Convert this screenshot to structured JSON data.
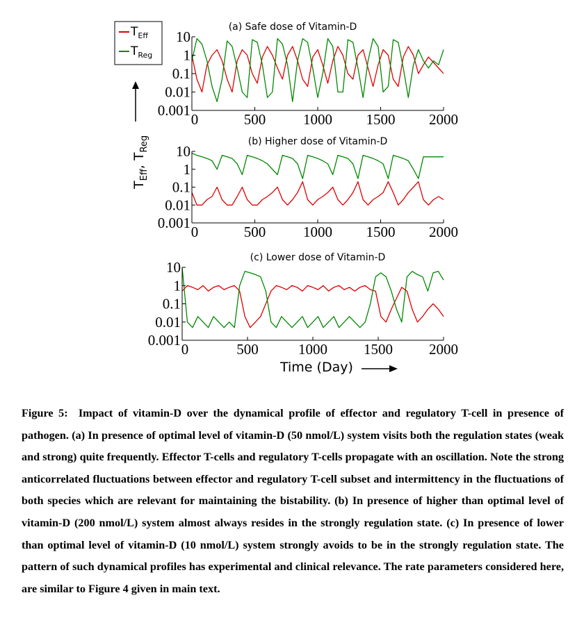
{
  "legend": {
    "entries": [
      {
        "base": "T",
        "sub": "Eff",
        "color": "#e00000"
      },
      {
        "base": "T",
        "sub": "Reg",
        "color": "#008800"
      }
    ]
  },
  "y_axis_label": {
    "part1": "T",
    "sub1": "Eff",
    "sep": ", T",
    "sub2": "Reg"
  },
  "x_axis_label": "Time (Day)",
  "chart_data": [
    {
      "type": "line",
      "title": "(a) Safe dose of Vitamin-D",
      "scale_y": "log",
      "xlim": [
        0,
        2000
      ],
      "ylim": [
        0.001,
        10
      ],
      "xticks": [
        "0",
        "500",
        "1000",
        "1500",
        "2000"
      ],
      "yticks": [
        "10",
        "1",
        "0.1",
        "0.01",
        "0.001"
      ],
      "series": [
        {
          "name": "TEff",
          "color": "#e00000",
          "x": [
            0,
            40,
            80,
            120,
            160,
            200,
            240,
            280,
            320,
            360,
            400,
            440,
            480,
            520,
            560,
            600,
            640,
            680,
            720,
            760,
            800,
            840,
            880,
            920,
            960,
            1000,
            1040,
            1080,
            1120,
            1160,
            1200,
            1240,
            1280,
            1320,
            1360,
            1400,
            1440,
            1480,
            1520,
            1560,
            1600,
            1640,
            1680,
            1720,
            1760,
            1800,
            1840,
            1880,
            1920,
            1960,
            2000
          ],
          "y": [
            1,
            0.05,
            0.01,
            0.3,
            1,
            2,
            0.5,
            0.05,
            0.01,
            0.5,
            2,
            1,
            0.1,
            0.03,
            0.8,
            3,
            1,
            0.2,
            0.05,
            1,
            3,
            0.5,
            0.05,
            0.02,
            0.8,
            2,
            0.3,
            0.03,
            0.5,
            3,
            1,
            0.1,
            0.05,
            1,
            2,
            0.2,
            0.02,
            0.3,
            2,
            1,
            0.05,
            0.02,
            0.8,
            3,
            1,
            0.1,
            0.3,
            0.8,
            0.4,
            0.2,
            0.1
          ]
        },
        {
          "name": "TReg",
          "color": "#008800",
          "x": [
            0,
            40,
            80,
            120,
            160,
            200,
            240,
            280,
            320,
            360,
            400,
            440,
            480,
            520,
            560,
            600,
            640,
            680,
            720,
            760,
            800,
            840,
            880,
            920,
            960,
            1000,
            1040,
            1080,
            1120,
            1160,
            1200,
            1240,
            1280,
            1320,
            1360,
            1400,
            1440,
            1480,
            1520,
            1560,
            1600,
            1640,
            1680,
            1720,
            1760,
            1800,
            1840,
            1880,
            1920,
            1960,
            2000
          ],
          "y": [
            0.5,
            8,
            4,
            0.5,
            0.02,
            0.003,
            0.05,
            6,
            3,
            0.2,
            0.01,
            0.005,
            7,
            5,
            0.3,
            0.005,
            0.01,
            8,
            4,
            0.3,
            0.003,
            0.5,
            8,
            5,
            0.2,
            0.005,
            0.1,
            8,
            3,
            0.01,
            0.01,
            7,
            5,
            0.2,
            0.005,
            0.5,
            8,
            3,
            0.01,
            0.02,
            7,
            5,
            0.2,
            0.005,
            0.3,
            2,
            0.5,
            0.2,
            0.5,
            0.3,
            2
          ]
        }
      ]
    },
    {
      "type": "line",
      "title": "(b) Higher dose of Vitamin-D",
      "scale_y": "log",
      "xlim": [
        0,
        2000
      ],
      "ylim": [
        0.001,
        10
      ],
      "xticks": [
        "0",
        "500",
        "1000",
        "1500",
        "2000"
      ],
      "yticks": [
        "10",
        "1",
        "0.1",
        "0.01",
        "0.001"
      ],
      "series": [
        {
          "name": "TEff",
          "color": "#e00000",
          "x": [
            0,
            40,
            80,
            120,
            160,
            200,
            240,
            280,
            320,
            360,
            400,
            440,
            480,
            520,
            560,
            600,
            640,
            680,
            720,
            760,
            800,
            840,
            880,
            920,
            960,
            1000,
            1040,
            1080,
            1120,
            1160,
            1200,
            1240,
            1280,
            1320,
            1360,
            1400,
            1440,
            1480,
            1520,
            1560,
            1600,
            1640,
            1680,
            1720,
            1760,
            1800,
            1840,
            1880,
            1920,
            1960,
            2000
          ],
          "y": [
            0.05,
            0.01,
            0.01,
            0.02,
            0.03,
            0.1,
            0.02,
            0.01,
            0.01,
            0.03,
            0.1,
            0.02,
            0.01,
            0.01,
            0.02,
            0.03,
            0.05,
            0.1,
            0.02,
            0.01,
            0.02,
            0.05,
            0.2,
            0.02,
            0.01,
            0.02,
            0.03,
            0.05,
            0.1,
            0.02,
            0.01,
            0.02,
            0.05,
            0.2,
            0.02,
            0.01,
            0.02,
            0.03,
            0.05,
            0.2,
            0.05,
            0.01,
            0.02,
            0.05,
            0.1,
            0.2,
            0.02,
            0.01,
            0.02,
            0.03,
            0.02
          ]
        },
        {
          "name": "TReg",
          "color": "#008800",
          "x": [
            0,
            40,
            80,
            120,
            160,
            200,
            240,
            280,
            320,
            360,
            400,
            440,
            480,
            520,
            560,
            600,
            640,
            680,
            720,
            760,
            800,
            840,
            880,
            920,
            960,
            1000,
            1040,
            1080,
            1120,
            1160,
            1200,
            1240,
            1280,
            1320,
            1360,
            1400,
            1440,
            1480,
            1520,
            1560,
            1600,
            1640,
            1680,
            1720,
            1760,
            1800,
            1840,
            1880,
            1920,
            1960,
            2000
          ],
          "y": [
            8,
            6,
            5,
            4,
            3,
            1,
            6,
            5,
            4,
            2,
            0.5,
            6,
            5,
            4,
            3,
            2,
            1,
            0.5,
            6,
            5,
            4,
            2,
            0.3,
            6,
            5,
            4,
            3,
            2,
            0.5,
            6,
            5,
            4,
            2,
            0.3,
            6,
            5,
            4,
            3,
            2,
            0.3,
            6,
            5,
            4,
            3,
            1,
            0.3,
            5,
            5,
            5,
            5,
            5
          ]
        }
      ]
    },
    {
      "type": "line",
      "title": "(c) Lower dose of Vitamin-D",
      "scale_y": "log",
      "xlim": [
        0,
        2000
      ],
      "ylim": [
        0.001,
        10
      ],
      "xticks": [
        "0",
        "500",
        "1000",
        "1500",
        "2000"
      ],
      "yticks": [
        "10",
        "1",
        "0.1",
        "0.01",
        "0.001"
      ],
      "series": [
        {
          "name": "TEff",
          "color": "#e00000",
          "x": [
            0,
            40,
            80,
            120,
            160,
            200,
            240,
            280,
            320,
            360,
            400,
            440,
            480,
            520,
            560,
            600,
            640,
            680,
            720,
            760,
            800,
            840,
            880,
            920,
            960,
            1000,
            1040,
            1080,
            1120,
            1160,
            1200,
            1240,
            1280,
            1320,
            1360,
            1400,
            1440,
            1480,
            1520,
            1560,
            1600,
            1640,
            1680,
            1720,
            1760,
            1800,
            1840,
            1880,
            1920,
            1960,
            2000
          ],
          "y": [
            0.5,
            1,
            0.8,
            0.6,
            1,
            0.5,
            0.8,
            1,
            0.6,
            0.8,
            1,
            0.5,
            0.02,
            0.005,
            0.01,
            0.02,
            0.1,
            0.5,
            1,
            0.8,
            0.6,
            1,
            0.8,
            0.5,
            1,
            0.8,
            0.6,
            1,
            0.5,
            0.8,
            1,
            0.6,
            0.8,
            0.5,
            0.8,
            1,
            0.6,
            0.5,
            0.02,
            0.01,
            0.05,
            0.2,
            0.8,
            0.5,
            0.05,
            0.01,
            0.02,
            0.05,
            0.1,
            0.05,
            0.02
          ]
        },
        {
          "name": "TReg",
          "color": "#008800",
          "x": [
            0,
            40,
            80,
            120,
            160,
            200,
            240,
            280,
            320,
            360,
            400,
            440,
            480,
            520,
            560,
            600,
            640,
            680,
            720,
            760,
            800,
            840,
            880,
            920,
            960,
            1000,
            1040,
            1080,
            1120,
            1160,
            1200,
            1240,
            1280,
            1320,
            1360,
            1400,
            1440,
            1480,
            1520,
            1560,
            1600,
            1640,
            1680,
            1720,
            1760,
            1800,
            1840,
            1880,
            1920,
            1960,
            2000
          ],
          "y": [
            10,
            0.01,
            0.005,
            0.02,
            0.01,
            0.005,
            0.02,
            0.01,
            0.005,
            0.01,
            0.005,
            1,
            6,
            5,
            4,
            3,
            0.5,
            0.01,
            0.005,
            0.02,
            0.01,
            0.005,
            0.01,
            0.02,
            0.005,
            0.01,
            0.02,
            0.005,
            0.01,
            0.02,
            0.005,
            0.01,
            0.02,
            0.01,
            0.005,
            0.01,
            0.1,
            3,
            5,
            3,
            0.5,
            0.05,
            0.01,
            3,
            6,
            4,
            3,
            0.5,
            5,
            6,
            2
          ]
        }
      ]
    }
  ],
  "caption": {
    "label": "Figure 5:",
    "text": "Impact of vitamin-D over the dynamical profile of effector and regulatory T-cell in presence of pathogen. (a) In presence of optimal level of vitamin-D (50 nmol/L) system visits both the regulation states (weak and strong) quite frequently. Effector T-cells and regulatory T-cells propagate with an oscillation. Note the strong anticorrelated fluctuations between effector and regulatory T-cell subset and intermittency in the fluctuations of both species which are relevant for maintaining the bistability. (b) In presence of higher than optimal level of vitamin-D (200 nmol/L) system almost always resides in the strongly regulation state. (c) In presence of lower than optimal level of vitamin-D (10 nmol/L) system strongly avoids to be in the strongly regulation state. The pattern of such dynamical profiles has experimental and clinical relevance. The rate parameters considered here, are similar to Figure 4 given in main text."
  }
}
